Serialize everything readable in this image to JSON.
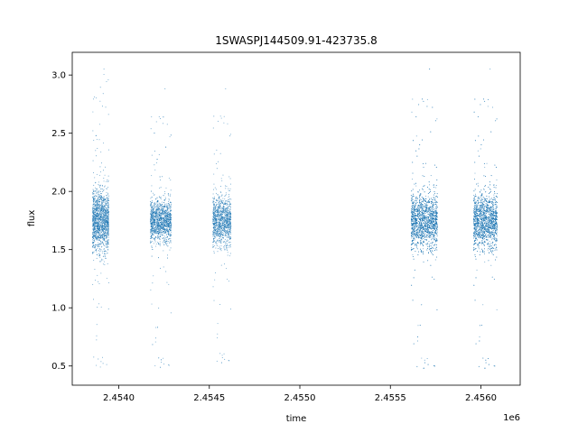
{
  "chart_data": {
    "type": "scatter",
    "title": "1SWASPJ144509.91-423735.8",
    "xlabel": "time",
    "ylabel": "flux",
    "x_offset_label": "1e6",
    "xlim": [
      2453743,
      2456217
    ],
    "ylim": [
      0.335,
      3.195
    ],
    "x_ticks": [
      2.454,
      2.4545,
      2.455,
      2.4555,
      2.456
    ],
    "x_tick_labels": [
      "2.4540",
      "2.4545",
      "2.4550",
      "2.4555",
      "2.4560"
    ],
    "y_ticks": [
      0.5,
      1.0,
      1.5,
      2.0,
      2.5,
      3.0
    ],
    "y_tick_labels": [
      "0.5",
      "1.0",
      "1.5",
      "2.0",
      "2.5",
      "3.0"
    ],
    "grid": false,
    "point_color": "#1f77b4",
    "observing_seasons": [
      {
        "x_start": 2453855,
        "x_end": 2453945,
        "flux_center": 1.75,
        "flux_spread": 0.22,
        "flux_min": 0.46,
        "flux_max": 3.07,
        "n_points": 1600
      },
      {
        "x_start": 2454175,
        "x_end": 2454290,
        "flux_center": 1.75,
        "flux_spread": 0.15,
        "flux_min": 0.46,
        "flux_max": 2.9,
        "n_points": 1500
      },
      {
        "x_start": 2454520,
        "x_end": 2454620,
        "flux_center": 1.75,
        "flux_spread": 0.18,
        "flux_min": 0.5,
        "flux_max": 2.9,
        "n_points": 1200
      },
      {
        "x_start": 2455615,
        "x_end": 2455760,
        "flux_center": 1.75,
        "flux_spread": 0.2,
        "flux_min": 0.45,
        "flux_max": 3.07,
        "n_points": 2400
      },
      {
        "x_start": 2455960,
        "x_end": 2456090,
        "flux_center": 1.75,
        "flux_spread": 0.2,
        "flux_min": 0.45,
        "flux_max": 3.07,
        "n_points": 2200
      }
    ]
  }
}
